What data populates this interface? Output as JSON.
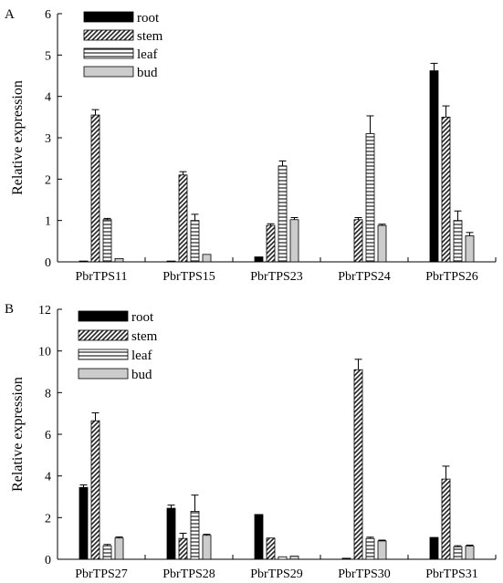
{
  "chart_data": [
    {
      "type": "bar",
      "panel_label": "A",
      "ylabel": "Relative expression",
      "ylim": [
        0,
        6
      ],
      "yticks": [
        0,
        1,
        2,
        3,
        4,
        5,
        6
      ],
      "categories": [
        "PbrTPS11",
        "PbrTPS15",
        "PbrTPS23",
        "PbrTPS24",
        "PbrTPS26"
      ],
      "legend_position": "top-left",
      "series": [
        {
          "name": "root",
          "values": [
            0.02,
            0.02,
            0.12,
            0.0,
            4.62
          ],
          "errors": [
            0.0,
            0.0,
            0.0,
            0.0,
            0.18
          ]
        },
        {
          "name": "stem",
          "values": [
            3.55,
            2.1,
            0.88,
            1.02,
            3.5
          ],
          "errors": [
            0.13,
            0.08,
            0.04,
            0.05,
            0.27
          ]
        },
        {
          "name": "leaf",
          "values": [
            1.02,
            1.0,
            2.32,
            3.1,
            1.0
          ],
          "errors": [
            0.03,
            0.15,
            0.12,
            0.43,
            0.23
          ]
        },
        {
          "name": "bud",
          "values": [
            0.08,
            0.18,
            1.02,
            0.88,
            0.63
          ],
          "errors": [
            0.0,
            0.0,
            0.05,
            0.03,
            0.08
          ]
        }
      ]
    },
    {
      "type": "bar",
      "panel_label": "B",
      "ylabel": "Relative expression",
      "ylim": [
        0,
        12
      ],
      "yticks": [
        0,
        2,
        4,
        6,
        8,
        10,
        12
      ],
      "categories": [
        "PbrTPS27",
        "PbrTPS28",
        "PbrTPS29",
        "PbrTPS30",
        "PbrTPS31"
      ],
      "legend_position": "top-left",
      "series": [
        {
          "name": "root",
          "values": [
            3.45,
            2.45,
            2.15,
            0.05,
            1.05
          ],
          "errors": [
            0.12,
            0.15,
            0.0,
            0.0,
            0.0
          ]
        },
        {
          "name": "stem",
          "values": [
            6.65,
            1.0,
            1.02,
            9.1,
            3.85
          ],
          "errors": [
            0.38,
            0.25,
            0.0,
            0.5,
            0.62
          ]
        },
        {
          "name": "leaf",
          "values": [
            0.65,
            2.3,
            0.12,
            1.0,
            0.6
          ],
          "errors": [
            0.06,
            0.78,
            0.0,
            0.06,
            0.05
          ]
        },
        {
          "name": "bud",
          "values": [
            1.02,
            1.15,
            0.15,
            0.88,
            0.63
          ],
          "errors": [
            0.05,
            0.05,
            0.0,
            0.04,
            0.05
          ]
        }
      ]
    }
  ]
}
